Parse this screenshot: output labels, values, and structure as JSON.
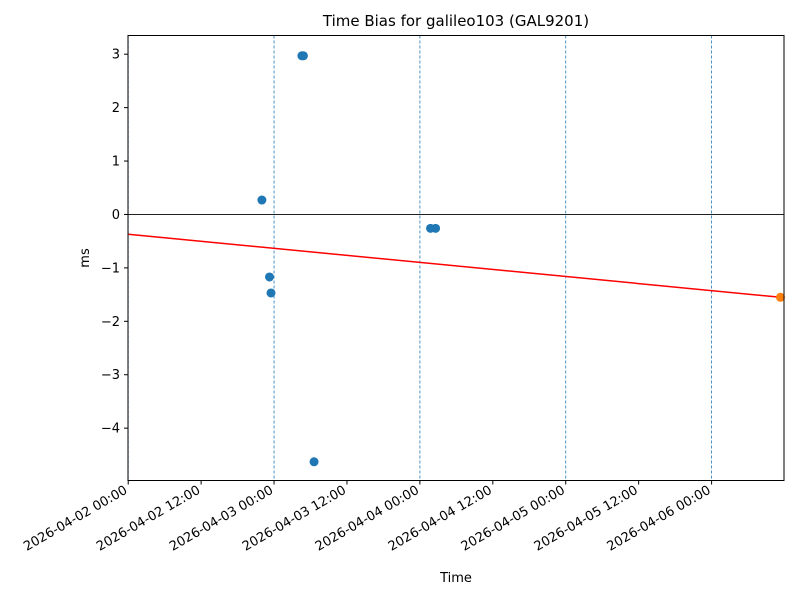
{
  "chart_data": {
    "type": "scatter",
    "title": "Time Bias for galileo103 (GAL9201)",
    "xlabel": "Time",
    "ylabel": "ms",
    "x_axis_type": "datetime",
    "xlim": [
      "2026-04-01T23:58:00",
      "2026-04-06T11:55:00"
    ],
    "ylim": [
      -4.98,
      3.35
    ],
    "yticks": [
      -4,
      -3,
      -2,
      -1,
      0,
      1,
      2,
      3
    ],
    "ytick_labels": [
      "−4",
      "−3",
      "−2",
      "−1",
      "0",
      "1",
      "2",
      "3"
    ],
    "xticks": [
      "2026-04-02T00:00:00",
      "2026-04-02T12:00:00",
      "2026-04-03T00:00:00",
      "2026-04-03T12:00:00",
      "2026-04-04T00:00:00",
      "2026-04-04T12:00:00",
      "2026-04-05T00:00:00",
      "2026-04-05T12:00:00",
      "2026-04-06T00:00:00"
    ],
    "xtick_labels": [
      "2026-04-02 00:00",
      "2026-04-02 12:00",
      "2026-04-03 00:00",
      "2026-04-03 12:00",
      "2026-04-04 00:00",
      "2026-04-04 12:00",
      "2026-04-05 00:00",
      "2026-04-05 12:00",
      "2026-04-06 00:00"
    ],
    "grid": false,
    "vertical_reference_lines": [
      "2026-04-02T00:00:00",
      "2026-04-03T00:00:00",
      "2026-04-04T00:00:00",
      "2026-04-05T00:00:00",
      "2026-04-06T00:00:00"
    ],
    "horizontal_reference_line": 0,
    "series": [
      {
        "kind": "scatter",
        "color": "#1f77b4",
        "points": [
          {
            "x": "2026-04-02T22:00:00",
            "y": 0.27
          },
          {
            "x": "2026-04-02T23:15:00",
            "y": -1.17
          },
          {
            "x": "2026-04-02T23:30:00",
            "y": -1.47
          },
          {
            "x": "2026-04-03T04:35:00",
            "y": 2.97
          },
          {
            "x": "2026-04-03T04:50:00",
            "y": 2.97
          },
          {
            "x": "2026-04-03T06:35:00",
            "y": -4.63
          },
          {
            "x": "2026-04-04T01:45:00",
            "y": -0.26
          },
          {
            "x": "2026-04-04T02:35:00",
            "y": -0.26
          }
        ]
      },
      {
        "kind": "line",
        "color": "#ff0000",
        "points": [
          {
            "x": "2026-04-02T00:00:00",
            "y": -0.37
          },
          {
            "x": "2026-04-06T11:20:00",
            "y": -1.55
          }
        ]
      },
      {
        "kind": "scatter",
        "color": "#ff7f0e",
        "points": [
          {
            "x": "2026-04-06T11:20:00",
            "y": -1.55
          }
        ]
      }
    ]
  }
}
